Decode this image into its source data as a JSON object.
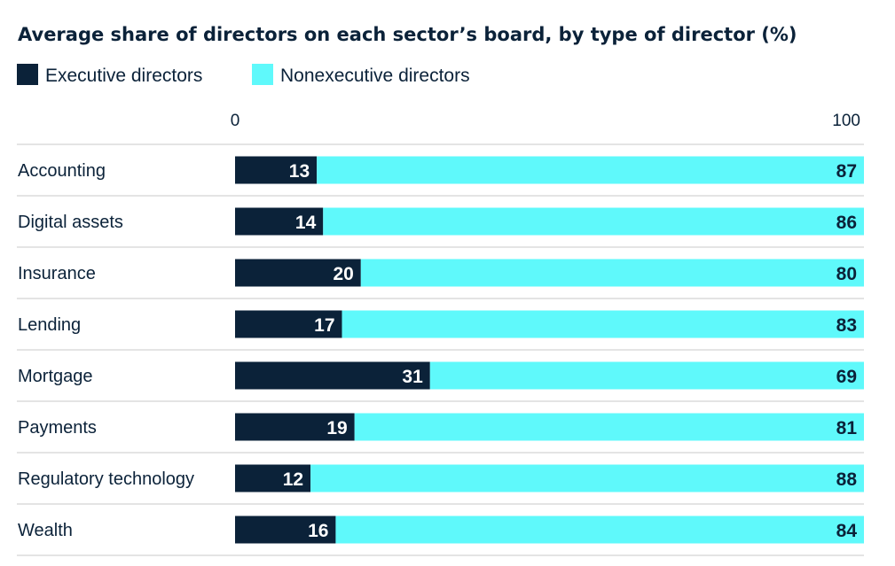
{
  "colors": {
    "executive": "#0b2239",
    "nonexecutive": "#5ff9fb",
    "text": "#0b2239",
    "rule": "#c8c8c8",
    "label_on_dark": "#ffffff",
    "label_on_light": "#0b2239"
  },
  "chart_data": {
    "type": "bar",
    "orientation": "horizontal",
    "stacked": true,
    "title": "Average share of directors on each sector’s board, by type of director (%)",
    "legend_position": "top-left",
    "xlim": [
      0,
      100
    ],
    "x_ticks": [
      "0",
      "100"
    ],
    "categories": [
      "Accounting",
      "Digital assets",
      "Insurance",
      "Lending",
      "Mortgage",
      "Payments",
      "Regulatory technology",
      "Wealth"
    ],
    "series": [
      {
        "name": "Executive directors",
        "values": [
          13,
          14,
          20,
          17,
          31,
          19,
          12,
          16
        ]
      },
      {
        "name": "Nonexecutive directors",
        "values": [
          87,
          86,
          80,
          83,
          69,
          81,
          88,
          84
        ]
      }
    ]
  }
}
